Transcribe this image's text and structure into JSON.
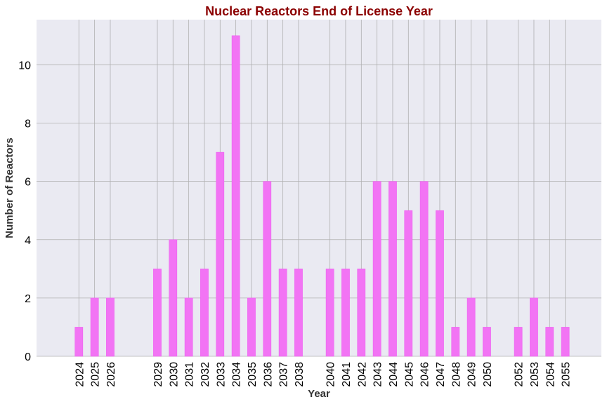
{
  "chart_data": {
    "type": "bar",
    "title": "Nuclear Reactors End of License Year",
    "xlabel": "Year",
    "ylabel": "Number of Reactors",
    "x": [
      2024,
      2025,
      2026,
      2029,
      2030,
      2031,
      2032,
      2033,
      2034,
      2035,
      2036,
      2037,
      2038,
      2040,
      2041,
      2042,
      2043,
      2044,
      2045,
      2046,
      2047,
      2048,
      2049,
      2050,
      2052,
      2053,
      2054,
      2055
    ],
    "values": [
      1,
      2,
      2,
      3,
      4,
      2,
      3,
      7,
      11,
      2,
      6,
      3,
      3,
      3,
      3,
      3,
      6,
      6,
      5,
      6,
      5,
      1,
      2,
      1,
      1,
      2,
      1,
      1
    ],
    "xlim": [
      2021.3,
      2057.3
    ],
    "ylim": [
      0,
      11.55
    ],
    "yticks": [
      0,
      2,
      4,
      6,
      8,
      10
    ],
    "grid": true,
    "legend": "none",
    "colors": {
      "bar": "#f274f4",
      "bar_edge": "#ee55f0",
      "plot_background": "#eaeaf2",
      "grid": "#b0b0b0",
      "title": "#8b0000"
    }
  }
}
